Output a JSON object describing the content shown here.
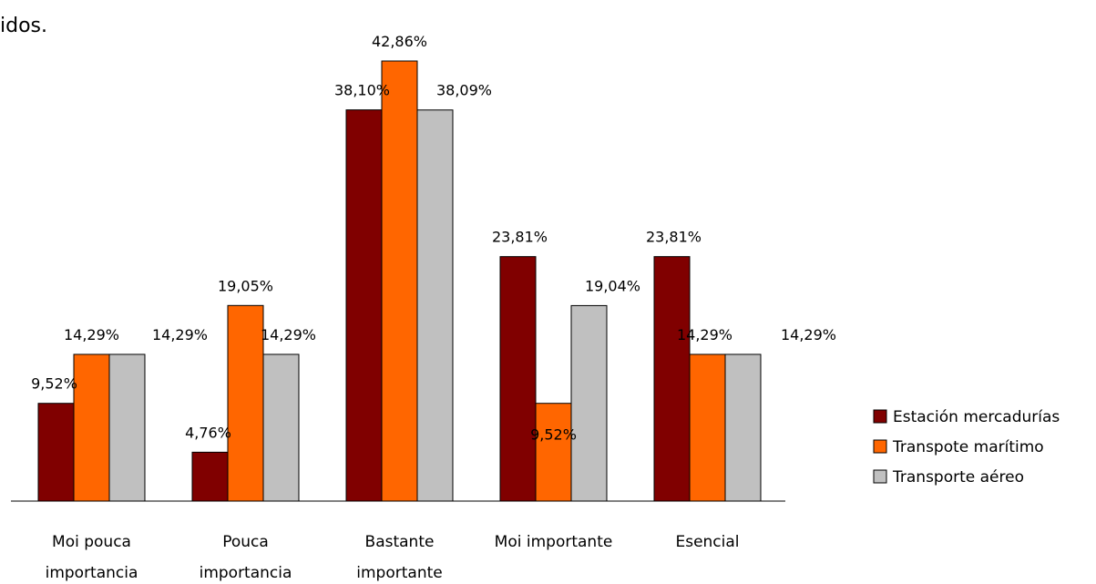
{
  "partial_text": "idos.",
  "chart_data": {
    "type": "bar",
    "categories": [
      [
        "Moi pouca",
        "importancia"
      ],
      [
        "Pouca",
        "importancia"
      ],
      [
        "Bastante",
        "importante"
      ],
      [
        "Moi importante"
      ],
      [
        "Esencial"
      ]
    ],
    "series": [
      {
        "name": "Estación mercadurías",
        "color": "#800000",
        "values": [
          9.52,
          4.76,
          38.1,
          23.81,
          23.81
        ],
        "labels": [
          "9,52%",
          "4,76%",
          "38,10%",
          "23,81%",
          "23,81%"
        ]
      },
      {
        "name": "Transpote marítimo",
        "color": "#ff6600",
        "values": [
          14.29,
          19.05,
          42.86,
          9.52,
          14.29
        ],
        "labels": [
          "14,29%",
          "19,05%",
          "42,86%",
          "9,52%",
          "14,29%"
        ]
      },
      {
        "name": "Transporte aéreo",
        "color": "#c0c0c0",
        "values": [
          14.29,
          14.29,
          38.09,
          19.04,
          14.29
        ],
        "labels": [
          "14,29%",
          "14,29%",
          "38,09%",
          "19,04%",
          "14,29%"
        ]
      }
    ],
    "ylim": [
      0,
      45
    ],
    "grid": false,
    "legend": "right"
  }
}
